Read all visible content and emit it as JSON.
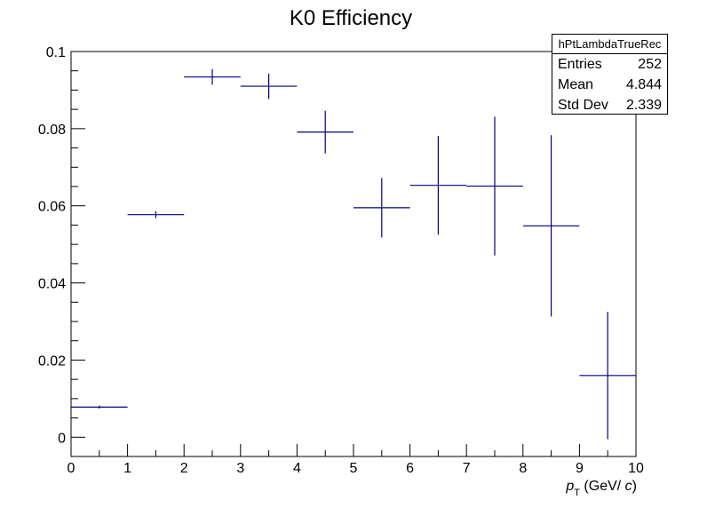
{
  "chart_data": {
    "type": "scatter",
    "title": "K0 Efficiency",
    "xlabel": "p_T (GeV/ c)",
    "ylabel": "",
    "xlim": [
      0,
      10
    ],
    "ylim": [
      -0.005,
      0.1
    ],
    "x_ticks": [
      "0",
      "1",
      "2",
      "3",
      "4",
      "5",
      "6",
      "7",
      "8",
      "9",
      "10"
    ],
    "y_ticks": [
      "0",
      "0.02",
      "0.04",
      "0.06",
      "0.08",
      "0.1"
    ],
    "series": [
      {
        "color": "#000080",
        "points": [
          {
            "x": 0.5,
            "y": 0.0078,
            "xerr": 0.5,
            "yerr": 0.0004
          },
          {
            "x": 1.5,
            "y": 0.0577,
            "xerr": 0.5,
            "yerr": 0.0009
          },
          {
            "x": 2.5,
            "y": 0.0934,
            "xerr": 0.5,
            "yerr": 0.002
          },
          {
            "x": 3.5,
            "y": 0.091,
            "xerr": 0.5,
            "yerr": 0.0033
          },
          {
            "x": 4.5,
            "y": 0.0791,
            "xerr": 0.5,
            "yerr": 0.0055
          },
          {
            "x": 5.5,
            "y": 0.0595,
            "xerr": 0.5,
            "yerr": 0.0077
          },
          {
            "x": 6.5,
            "y": 0.0653,
            "xerr": 0.5,
            "yerr": 0.0128
          },
          {
            "x": 7.5,
            "y": 0.0651,
            "xerr": 0.5,
            "yerr": 0.018
          },
          {
            "x": 8.5,
            "y": 0.0548,
            "xerr": 0.5,
            "yerr": 0.0235
          },
          {
            "x": 9.5,
            "y": 0.016,
            "xerr": 0.5,
            "yerr": 0.0165
          }
        ]
      }
    ],
    "grid": false
  },
  "stats": {
    "name": "hPtLambdaTrueRec",
    "rows": [
      {
        "label": "Entries",
        "value": "252"
      },
      {
        "label": "Mean",
        "value": "4.844"
      },
      {
        "label": "Std Dev",
        "value": "2.339"
      }
    ]
  }
}
